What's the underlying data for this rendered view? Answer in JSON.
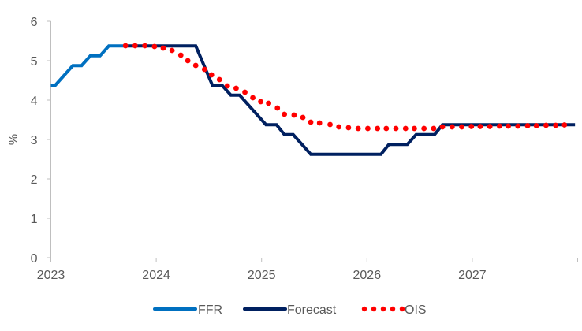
{
  "chart_data": {
    "type": "line",
    "title": "",
    "xlabel": "",
    "ylabel": "%",
    "x_unit": "months since Jan 2023",
    "xlim": [
      0,
      60
    ],
    "ylim": [
      0,
      6
    ],
    "y_ticks": [
      0,
      1,
      2,
      3,
      4,
      5,
      6
    ],
    "y_tick_labels": [
      "0",
      "1",
      "2",
      "3",
      "4",
      "5",
      "6"
    ],
    "x_ticks": [
      0,
      12,
      24,
      36,
      48,
      60
    ],
    "x_tick_labels": [
      "2023",
      "2024",
      "2025",
      "2026",
      "2027",
      ""
    ],
    "grid": false,
    "legend_position": "bottom",
    "series": [
      {
        "name": "FFR",
        "color": "#0070C0",
        "style": "solid",
        "points": [
          [
            0,
            4.375
          ],
          [
            0.5,
            4.375
          ],
          [
            2.5,
            4.875
          ],
          [
            3.5,
            4.875
          ],
          [
            4.5,
            5.125
          ],
          [
            5.6,
            5.125
          ],
          [
            6.6,
            5.375
          ],
          [
            8.4,
            5.375
          ]
        ]
      },
      {
        "name": "Forecast",
        "color": "#002060",
        "style": "solid",
        "points": [
          [
            8.4,
            5.375
          ],
          [
            16.5,
            5.375
          ],
          [
            18.4,
            4.375
          ],
          [
            19.5,
            4.375
          ],
          [
            20.5,
            4.125
          ],
          [
            21.5,
            4.125
          ],
          [
            24.5,
            3.375
          ],
          [
            25.7,
            3.375
          ],
          [
            26.6,
            3.125
          ],
          [
            27.6,
            3.125
          ],
          [
            29.6,
            2.625
          ],
          [
            37.6,
            2.625
          ],
          [
            38.5,
            2.875
          ],
          [
            40.6,
            2.875
          ],
          [
            41.6,
            3.125
          ],
          [
            43.7,
            3.125
          ],
          [
            44.6,
            3.375
          ],
          [
            59.7,
            3.375
          ]
        ]
      },
      {
        "name": "OIS",
        "color": "#FF0000",
        "style": "dotted",
        "points": [
          [
            8.5,
            5.38
          ],
          [
            9.6,
            5.38
          ],
          [
            10.7,
            5.38
          ],
          [
            11.8,
            5.36
          ],
          [
            12.8,
            5.32
          ],
          [
            13.8,
            5.26
          ],
          [
            14.8,
            5.14
          ],
          [
            15.6,
            5.0
          ],
          [
            16.5,
            4.88
          ],
          [
            17.5,
            4.78
          ],
          [
            18.3,
            4.64
          ],
          [
            19.2,
            4.52
          ],
          [
            20.1,
            4.36
          ],
          [
            21.1,
            4.3
          ],
          [
            22.1,
            4.2
          ],
          [
            23.0,
            4.06
          ],
          [
            23.9,
            3.96
          ],
          [
            24.8,
            3.92
          ],
          [
            25.8,
            3.8
          ],
          [
            26.6,
            3.64
          ],
          [
            27.7,
            3.62
          ],
          [
            28.7,
            3.56
          ],
          [
            29.6,
            3.44
          ],
          [
            30.6,
            3.42
          ],
          [
            31.8,
            3.38
          ],
          [
            32.8,
            3.32
          ],
          [
            33.9,
            3.3
          ],
          [
            35.0,
            3.28
          ],
          [
            36.1,
            3.28
          ],
          [
            37.2,
            3.28
          ],
          [
            38.2,
            3.28
          ],
          [
            39.3,
            3.28
          ],
          [
            40.4,
            3.28
          ],
          [
            41.4,
            3.28
          ],
          [
            42.5,
            3.28
          ],
          [
            43.6,
            3.28
          ],
          [
            44.6,
            3.32
          ],
          [
            45.7,
            3.32
          ],
          [
            46.8,
            3.32
          ],
          [
            47.9,
            3.33
          ],
          [
            48.9,
            3.33
          ],
          [
            50.0,
            3.33
          ],
          [
            51.1,
            3.34
          ],
          [
            52.1,
            3.34
          ],
          [
            53.2,
            3.34
          ],
          [
            54.3,
            3.35
          ],
          [
            55.3,
            3.35
          ],
          [
            56.4,
            3.36
          ],
          [
            57.5,
            3.36
          ],
          [
            58.5,
            3.37
          ]
        ]
      }
    ]
  }
}
